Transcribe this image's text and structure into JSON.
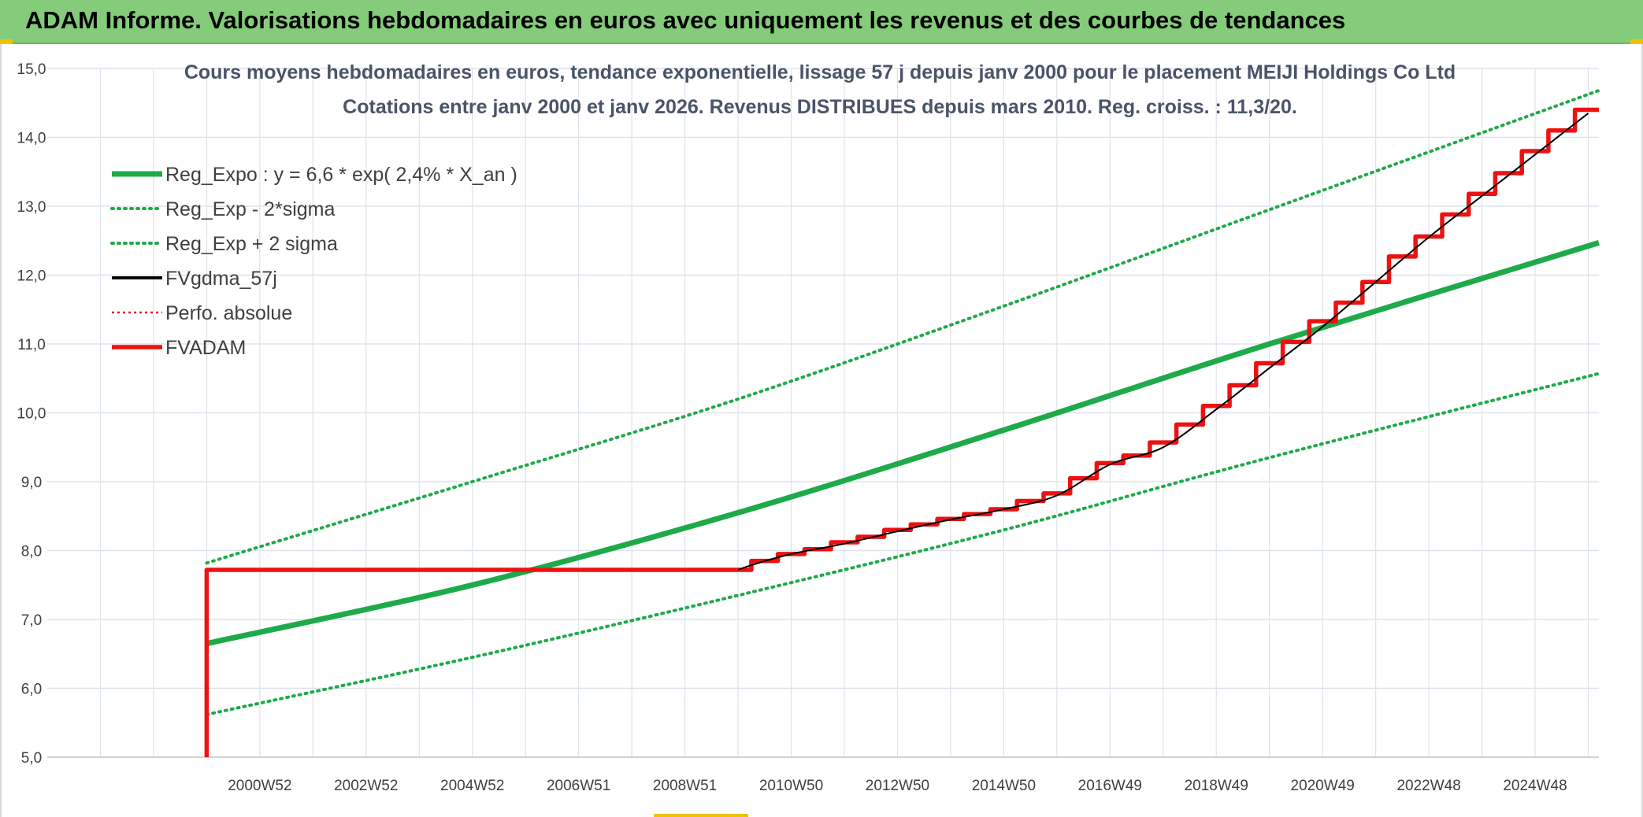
{
  "banner": {
    "title": "ADAM Informe. Valorisations hebdomadaires en euros avec uniquement les revenus et des courbes de tendances"
  },
  "colors": {
    "banner_bg": "#84cc7a",
    "reg_green": "#1faa4a",
    "band_green": "#1faa4a",
    "fvadam_red": "#ee1111",
    "fvgdma_black": "#000000",
    "perfo_red": "#dd2222",
    "grid": "#dde3ea",
    "title_text": "#4a5468"
  },
  "chart_data": {
    "type": "line",
    "title_line1": "Cours moyens hebdomadaires en euros, tendance exponentielle, lissage 57 j depuis janv 2000 pour le placement MEIJI Holdings Co Ltd",
    "title_line2": "Cotations entre janv 2000 et janv 2026. Revenus DISTRIBUES depuis mars 2010. Reg. croiss. : 11,3/20.",
    "xlabel": "",
    "ylabel": "",
    "xlim": [
      1997.0,
      2026.2
    ],
    "ylim": [
      5.0,
      15.0
    ],
    "y_ticks": [
      "5,0",
      "6,0",
      "7,0",
      "8,0",
      "9,0",
      "10,0",
      "11,0",
      "12,0",
      "13,0",
      "14,0",
      "15,0"
    ],
    "x_ticks": [
      {
        "label": "2000W52",
        "x": 2001.0
      },
      {
        "label": "2002W52",
        "x": 2003.0
      },
      {
        "label": "2004W52",
        "x": 2005.0
      },
      {
        "label": "2006W51",
        "x": 2007.0
      },
      {
        "label": "2008W51",
        "x": 2009.0
      },
      {
        "label": "2010W50",
        "x": 2011.0
      },
      {
        "label": "2012W50",
        "x": 2013.0
      },
      {
        "label": "2014W50",
        "x": 2015.0
      },
      {
        "label": "2016W49",
        "x": 2017.0
      },
      {
        "label": "2018W49",
        "x": 2019.0
      },
      {
        "label": "2020W49",
        "x": 2021.0
      },
      {
        "label": "2022W48",
        "x": 2023.0
      },
      {
        "label": "2024W48",
        "x": 2025.0
      }
    ],
    "legend_position": "top-left",
    "series": [
      {
        "name": "Reg_Expo : y = 6,6 * exp( 2,4% *  X_an )",
        "key": "reg",
        "style": "solid-thick",
        "color": "#1faa4a",
        "x": [
          2000.0,
          2005.0,
          2010.0,
          2015.0,
          2020.0,
          2026.2
        ],
        "y": [
          6.65,
          7.5,
          8.55,
          9.75,
          11.0,
          12.47
        ]
      },
      {
        "name": "Reg_Exp - 2*sigma",
        "key": "low",
        "style": "dotted",
        "color": "#1faa4a",
        "x": [
          2000.0,
          2005.0,
          2010.0,
          2015.0,
          2020.0,
          2026.2
        ],
        "y": [
          5.62,
          6.45,
          7.35,
          8.3,
          9.35,
          10.57
        ]
      },
      {
        "name": "Reg_Exp + 2 sigma",
        "key": "high",
        "style": "dotted",
        "color": "#1faa4a",
        "x": [
          2000.0,
          2005.0,
          2010.0,
          2015.0,
          2020.0,
          2026.2
        ],
        "y": [
          7.82,
          9.0,
          10.2,
          11.55,
          12.95,
          14.68
        ]
      },
      {
        "name": "FVgdma_57j",
        "key": "gdma",
        "style": "solid-thin",
        "color": "#000000",
        "x": [
          2010.0,
          2010.3,
          2011.0,
          2012.0,
          2013.0,
          2014.0,
          2015.0,
          2016.0,
          2017.0,
          2018.0,
          2019.0,
          2020.0,
          2021.0,
          2022.0,
          2023.0,
          2024.0,
          2025.0,
          2026.0
        ],
        "y": [
          7.72,
          7.8,
          7.95,
          8.1,
          8.28,
          8.45,
          8.6,
          8.8,
          9.25,
          9.5,
          10.05,
          10.65,
          11.25,
          11.9,
          12.55,
          13.15,
          13.75,
          14.35
        ]
      },
      {
        "name": "Perfo. absolue",
        "key": "perfo",
        "style": "dotted-thin",
        "color": "#dd2222",
        "x": [],
        "y": []
      },
      {
        "name": "FVADAM",
        "key": "fvadam",
        "style": "step-thick",
        "color": "#ee1111",
        "start": {
          "x": 2000.0,
          "y0": 5.0,
          "y1": 7.72
        },
        "steps": [
          {
            "x": 2010.25,
            "y": 7.85
          },
          {
            "x": 2010.75,
            "y": 7.95
          },
          {
            "x": 2011.25,
            "y": 8.02
          },
          {
            "x": 2011.75,
            "y": 8.12
          },
          {
            "x": 2012.25,
            "y": 8.2
          },
          {
            "x": 2012.75,
            "y": 8.3
          },
          {
            "x": 2013.25,
            "y": 8.38
          },
          {
            "x": 2013.75,
            "y": 8.46
          },
          {
            "x": 2014.25,
            "y": 8.53
          },
          {
            "x": 2014.75,
            "y": 8.6
          },
          {
            "x": 2015.25,
            "y": 8.72
          },
          {
            "x": 2015.75,
            "y": 8.83
          },
          {
            "x": 2016.25,
            "y": 9.05
          },
          {
            "x": 2016.75,
            "y": 9.27
          },
          {
            "x": 2017.25,
            "y": 9.38
          },
          {
            "x": 2017.75,
            "y": 9.57
          },
          {
            "x": 2018.25,
            "y": 9.83
          },
          {
            "x": 2018.75,
            "y": 10.1
          },
          {
            "x": 2019.25,
            "y": 10.4
          },
          {
            "x": 2019.75,
            "y": 10.72
          },
          {
            "x": 2020.25,
            "y": 11.03
          },
          {
            "x": 2020.75,
            "y": 11.33
          },
          {
            "x": 2021.25,
            "y": 11.6
          },
          {
            "x": 2021.75,
            "y": 11.9
          },
          {
            "x": 2022.25,
            "y": 12.27
          },
          {
            "x": 2022.75,
            "y": 12.56
          },
          {
            "x": 2023.25,
            "y": 12.88
          },
          {
            "x": 2023.75,
            "y": 13.18
          },
          {
            "x": 2024.25,
            "y": 13.48
          },
          {
            "x": 2024.75,
            "y": 13.8
          },
          {
            "x": 2025.25,
            "y": 14.1
          },
          {
            "x": 2025.75,
            "y": 14.4
          },
          {
            "x": 2026.2,
            "y": 14.4
          }
        ]
      }
    ]
  }
}
